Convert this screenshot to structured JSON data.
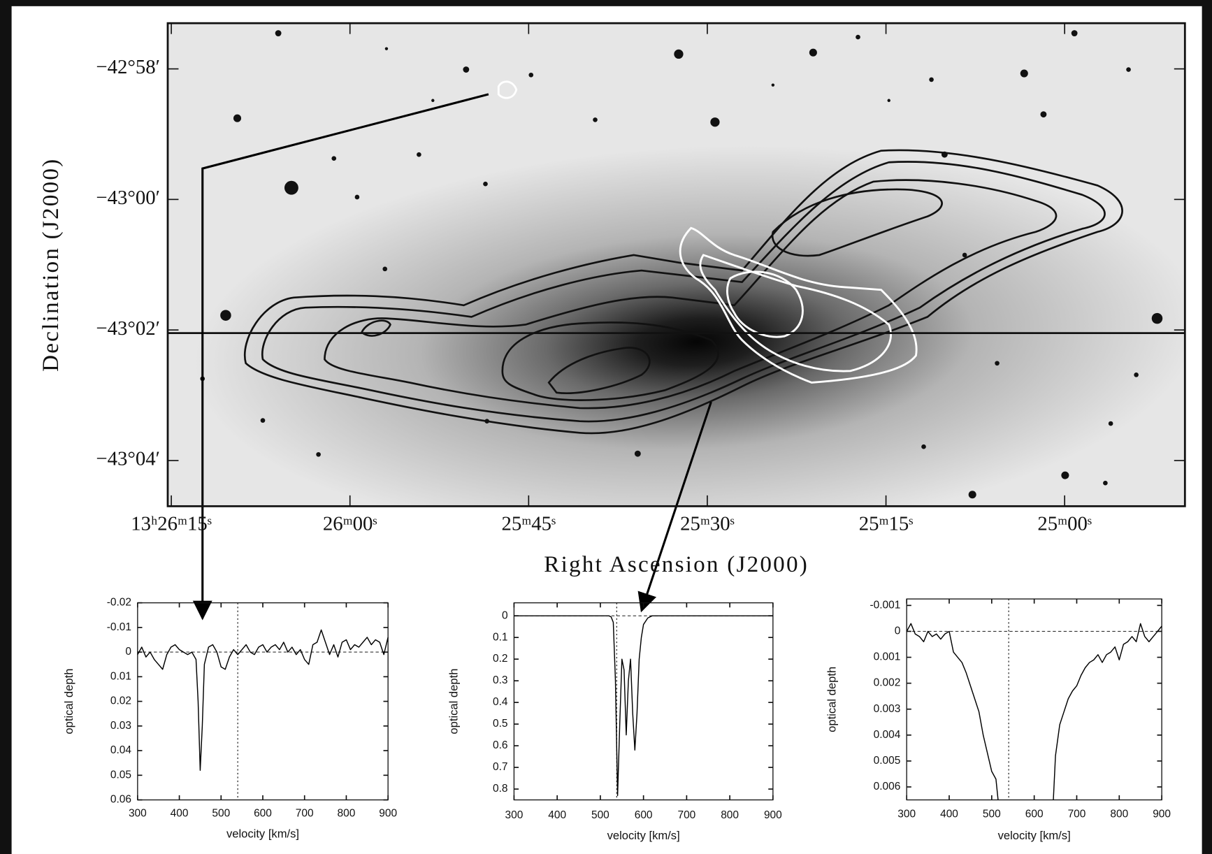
{
  "chart_data": [
    {
      "type": "image",
      "xlabel": "Right Ascension (J2000)",
      "ylabel": "Declination  (J2000)",
      "xlim": [
        48375.3,
        48289.9
      ],
      "ylim": [
        -2584.7,
        -2577.3
      ],
      "xticks": [
        {
          "value": 48375,
          "label": "13ʰ26ᵐ15ˢ"
        },
        {
          "value": 48360,
          "label": "26ᵐ00ˢ"
        },
        {
          "value": 48345,
          "label": "25ᵐ45ˢ"
        },
        {
          "value": 48330,
          "label": "25ᵐ30ˢ"
        },
        {
          "value": 48315,
          "label": "25ᵐ15ˢ"
        },
        {
          "value": 48300,
          "label": "25ᵐ00ˢ"
        }
      ],
      "yticks": [
        {
          "value": -2578,
          "label": "−42°58′"
        },
        {
          "value": -2580,
          "label": "−43°00′"
        },
        {
          "value": -2582,
          "label": "−43°02′"
        },
        {
          "value": -2584,
          "label": "−43°04′"
        }
      ]
    },
    {
      "type": "line",
      "xlabel": "velocity [km/s]",
      "ylabel": "optical depth",
      "color": "#000000",
      "xlim": [
        300,
        900
      ],
      "ylim": [
        0.06,
        -0.02
      ],
      "xticks": [
        300,
        400,
        500,
        600,
        700,
        800,
        900
      ],
      "yticks": [
        -0.02,
        -0.01,
        0,
        0.01,
        0.02,
        0.03,
        0.04,
        0.05,
        0.06
      ],
      "hline": 0,
      "vline": 540,
      "x": [
        300,
        310,
        320,
        330,
        340,
        350,
        360,
        370,
        380,
        390,
        400,
        410,
        420,
        430,
        440,
        445,
        450,
        455,
        460,
        470,
        480,
        490,
        500,
        510,
        520,
        530,
        540,
        550,
        560,
        570,
        580,
        590,
        600,
        610,
        620,
        630,
        640,
        650,
        660,
        670,
        680,
        690,
        700,
        710,
        720,
        730,
        740,
        750,
        760,
        770,
        780,
        790,
        800,
        810,
        820,
        830,
        840,
        850,
        860,
        870,
        880,
        890,
        900
      ],
      "values": [
        0.001,
        -0.002,
        0.002,
        0,
        0.003,
        0.005,
        0.007,
        0.001,
        -0.002,
        -0.003,
        -0.001,
        0,
        0.001,
        0,
        0.003,
        0.02,
        0.048,
        0.03,
        0.005,
        -0.002,
        -0.003,
        0,
        0.006,
        0.007,
        0.002,
        -0.001,
        0.001,
        -0.001,
        -0.003,
        0,
        0.001,
        -0.002,
        -0.003,
        0,
        -0.002,
        -0.003,
        -0.001,
        -0.004,
        0,
        -0.002,
        0.001,
        -0.001,
        0.003,
        0.005,
        -0.003,
        -0.004,
        -0.009,
        -0.004,
        0.001,
        -0.003,
        0.002,
        -0.004,
        -0.005,
        -0.001,
        -0.003,
        -0.002,
        -0.004,
        -0.006,
        -0.003,
        -0.005,
        -0.004,
        0.001,
        -0.006
      ]
    },
    {
      "type": "line",
      "xlabel": "velocity [km/s]",
      "ylabel": "optical depth",
      "color": "#000000",
      "xlim": [
        300,
        900
      ],
      "ylim": [
        0.85,
        -0.06
      ],
      "xticks": [
        300,
        400,
        500,
        600,
        700,
        800,
        900
      ],
      "yticks": [
        0,
        0.1,
        0.2,
        0.3,
        0.4,
        0.5,
        0.6,
        0.7,
        0.8
      ],
      "hline": 0,
      "vline": 538,
      "x": [
        300,
        320,
        340,
        360,
        380,
        400,
        420,
        440,
        460,
        480,
        500,
        520,
        525,
        530,
        535,
        540,
        545,
        550,
        555,
        560,
        565,
        570,
        575,
        580,
        585,
        590,
        595,
        600,
        610,
        620,
        640,
        660,
        680,
        700,
        720,
        740,
        760,
        780,
        800,
        820,
        840,
        860,
        880,
        900
      ],
      "values": [
        0,
        0,
        0,
        0,
        0,
        0,
        0,
        0,
        0,
        0,
        0,
        0,
        0.005,
        0.03,
        0.3,
        0.83,
        0.5,
        0.2,
        0.25,
        0.55,
        0.3,
        0.2,
        0.45,
        0.62,
        0.45,
        0.2,
        0.1,
        0.04,
        0.01,
        0,
        0,
        0,
        0,
        0,
        0,
        0,
        0,
        0,
        0,
        0,
        0,
        0,
        0,
        0
      ]
    },
    {
      "type": "line",
      "xlabel": "velocity [km/s]",
      "ylabel": "optical depth",
      "color": "#000000",
      "xlim": [
        300,
        900
      ],
      "ylim": [
        0.0065,
        -0.00125
      ],
      "xticks": [
        300,
        400,
        500,
        600,
        700,
        800,
        900
      ],
      "yticks": [
        -0.001,
        0,
        0.001,
        0.002,
        0.003,
        0.004,
        0.005,
        0.006
      ],
      "hline": 0,
      "vline": 540,
      "x": [
        300,
        310,
        320,
        330,
        340,
        350,
        360,
        370,
        380,
        390,
        400,
        410,
        420,
        430,
        440,
        450,
        460,
        470,
        480,
        490,
        500,
        510,
        515,
        530,
        645,
        650,
        660,
        670,
        680,
        690,
        700,
        710,
        720,
        730,
        740,
        750,
        760,
        770,
        780,
        790,
        800,
        810,
        820,
        830,
        840,
        850,
        860,
        870,
        880,
        890,
        900
      ],
      "values": [
        0,
        -0.0003,
        0.0001,
        0.0002,
        0.0004,
        0,
        0.0002,
        0.0001,
        0.0003,
        0.0001,
        0,
        0.0008,
        0.001,
        0.0012,
        0.0016,
        0.0021,
        0.0026,
        0.0031,
        0.004,
        0.0047,
        0.0054,
        0.0057,
        0.0065,
        null,
        0.0065,
        0.0048,
        0.0036,
        0.0031,
        0.0026,
        0.0023,
        0.0021,
        0.0017,
        0.0014,
        0.0012,
        0.0011,
        0.0009,
        0.0012,
        0.0009,
        0.0008,
        0.0006,
        0.0011,
        0.0005,
        0.0004,
        0.0002,
        0.0004,
        -0.0003,
        0.0002,
        0.0004,
        0.0002,
        0,
        -0.0002
      ]
    }
  ]
}
